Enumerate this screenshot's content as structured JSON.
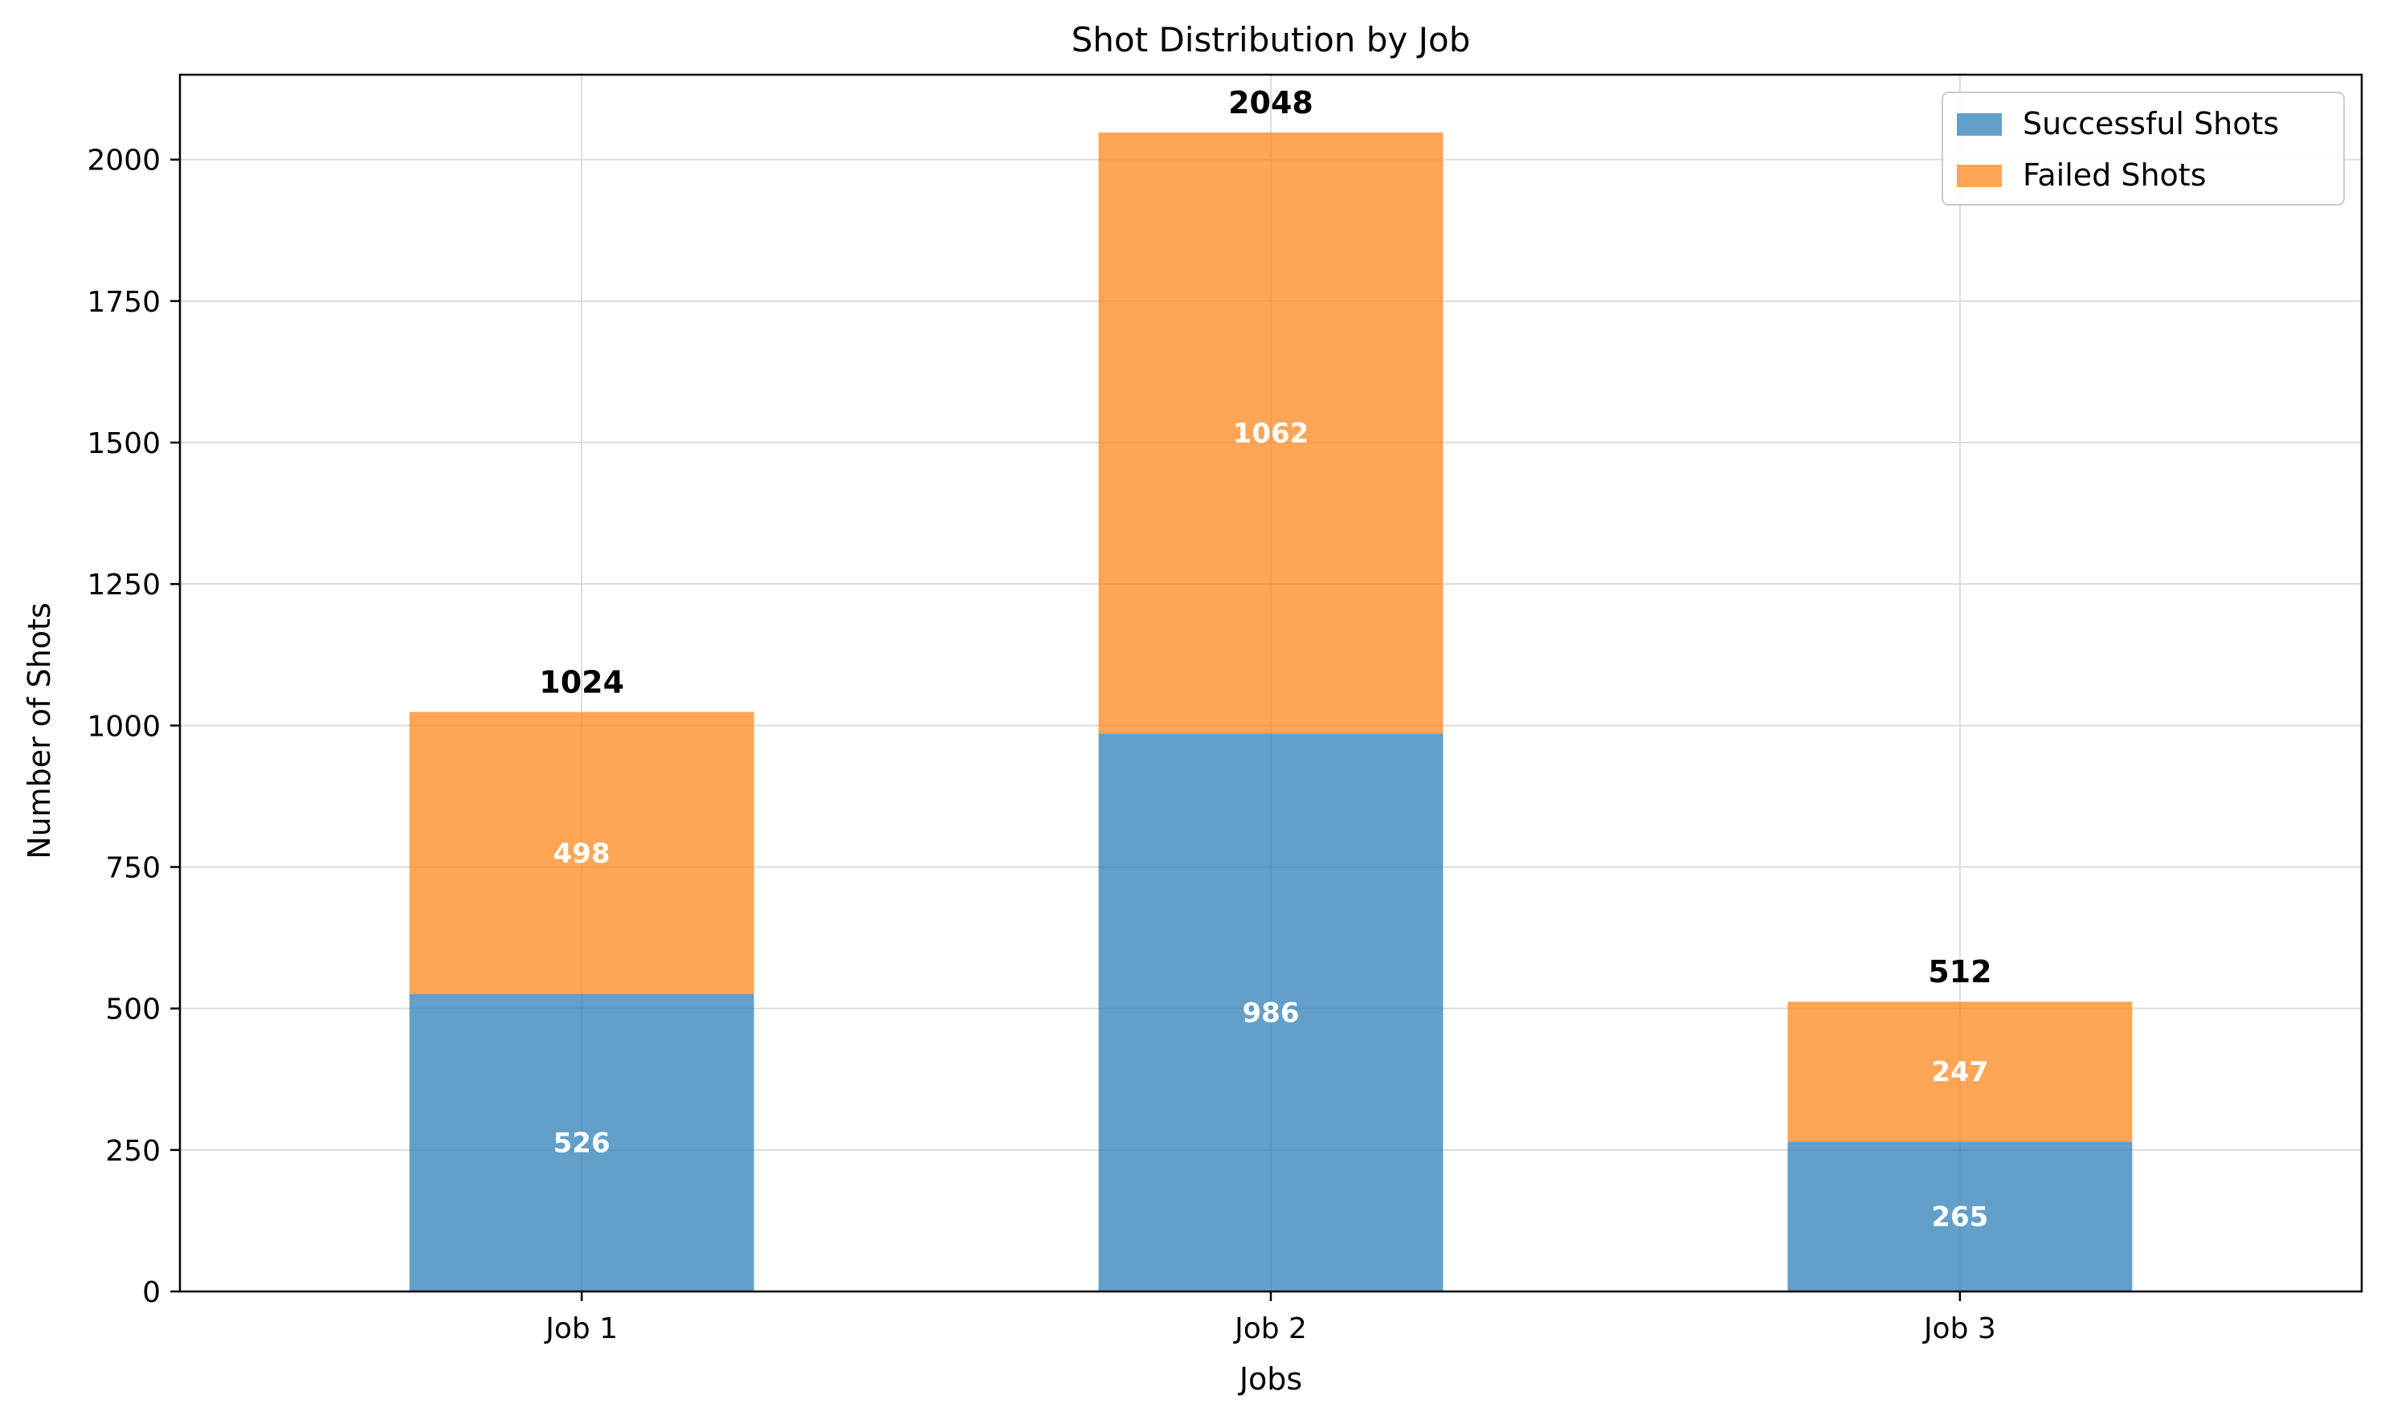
{
  "chart_data": {
    "type": "bar",
    "stacked": true,
    "title": "Shot Distribution by Job",
    "xlabel": "Jobs",
    "ylabel": "Number of Shots",
    "categories": [
      "Job 1",
      "Job 2",
      "Job 3"
    ],
    "series": [
      {
        "name": "Successful Shots",
        "values": [
          526,
          986,
          265
        ],
        "color": "#1f77b4"
      },
      {
        "name": "Failed Shots",
        "values": [
          498,
          1062,
          247
        ],
        "color": "#ff7f0e"
      }
    ],
    "totals": [
      1024,
      2048,
      512
    ],
    "ylim": [
      0,
      2150
    ],
    "yticks": [
      0,
      250,
      500,
      750,
      1000,
      1250,
      1500,
      1750,
      2000
    ],
    "grid": true,
    "legend_position": "top-right"
  }
}
